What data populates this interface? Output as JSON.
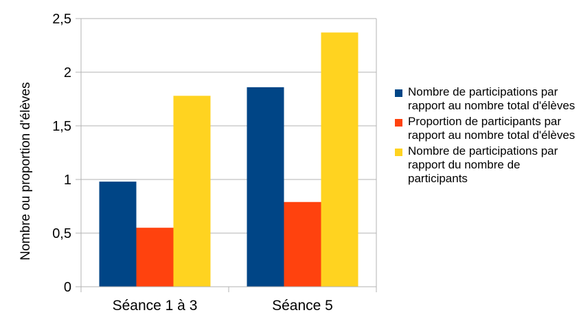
{
  "chart_data": {
    "type": "bar",
    "title": "",
    "xlabel": "",
    "ylabel": "Nombre ou proportion d'élèves",
    "ylim": [
      0,
      2.5
    ],
    "yticks": [
      "0",
      "0,5",
      "1",
      "1,5",
      "2",
      "2,5"
    ],
    "ytick_values": [
      0,
      0.5,
      1,
      1.5,
      2,
      2.5
    ],
    "grid": true,
    "legend_position": "right",
    "categories": [
      "Séance 1 à 3",
      "Séance 5"
    ],
    "series": [
      {
        "name": "Nombre de participations par rapport au nombre total d'élèves",
        "color": "#004586",
        "values": [
          0.98,
          1.86
        ]
      },
      {
        "name": "Proportion de participants par rapport au nombre total d'élèves",
        "color": "#ff420e",
        "values": [
          0.55,
          0.79
        ]
      },
      {
        "name": "Nombre de participations par rapport du nombre de participants",
        "color": "#ffd320",
        "values": [
          1.78,
          2.37
        ]
      }
    ]
  }
}
